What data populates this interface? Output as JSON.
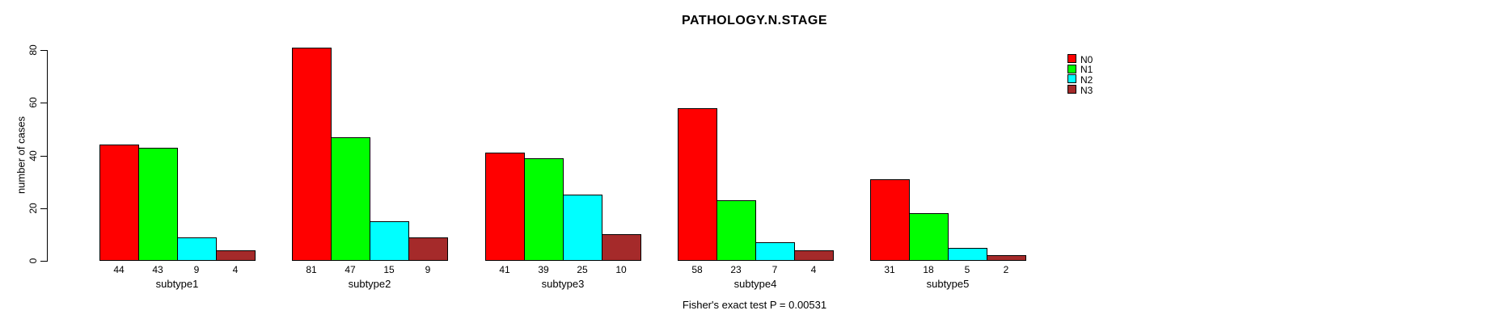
{
  "chart_data": {
    "type": "bar",
    "title": "PATHOLOGY.N.STAGE",
    "xlabel": "",
    "ylabel": "number of cases",
    "ylim": [
      0,
      80
    ],
    "yticks": [
      0,
      20,
      40,
      60,
      80
    ],
    "categories": [
      "subtype1",
      "subtype2",
      "subtype3",
      "subtype4",
      "subtype5"
    ],
    "series": [
      {
        "name": "N0",
        "color": "#FF0000",
        "values": [
          44,
          81,
          41,
          58,
          31
        ]
      },
      {
        "name": "N1",
        "color": "#00FF00",
        "values": [
          43,
          47,
          39,
          23,
          18
        ]
      },
      {
        "name": "N2",
        "color": "#00FFFF",
        "values": [
          9,
          15,
          25,
          7,
          5
        ]
      },
      {
        "name": "N3",
        "color": "#A52A2A",
        "values": [
          4,
          9,
          10,
          4,
          2
        ]
      }
    ],
    "bar_value_labels": true,
    "grid": false,
    "legend_position": "top-right",
    "legend_items": [
      "N0",
      "N1",
      "N2",
      "N3"
    ],
    "annotation": "Fisher's exact test P = 0.00531"
  }
}
